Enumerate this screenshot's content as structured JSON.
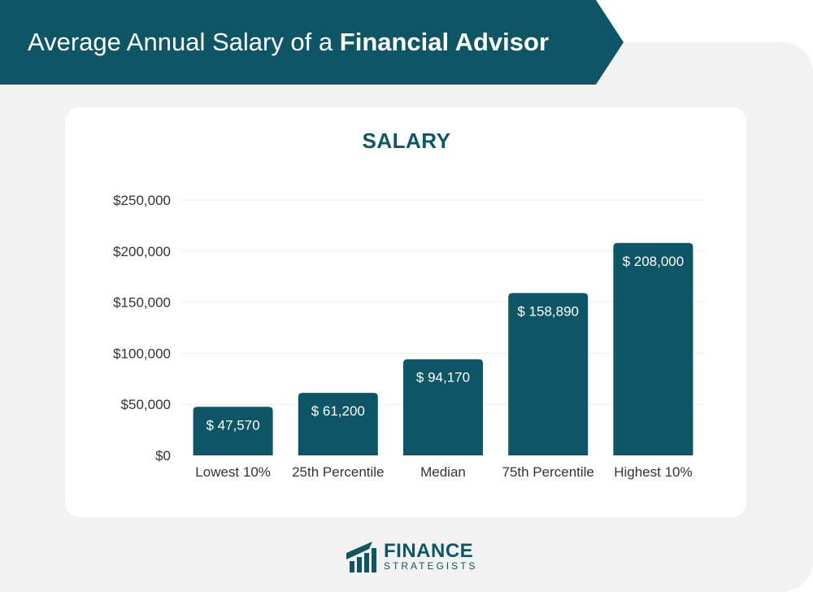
{
  "header": {
    "title_regular": "Average Annual Salary of a",
    "title_bold": "Financial Advisor"
  },
  "colors": {
    "banner": "#0e5566",
    "bar": "#0e5566",
    "background": "#f2f2f2",
    "card": "#ffffff",
    "axis_text": "#333333",
    "grid": "#eeeeee"
  },
  "chart_data": {
    "type": "bar",
    "title": "SALARY",
    "xlabel": "",
    "ylabel": "",
    "categories": [
      "Lowest 10%",
      "25th Percentile",
      "Median",
      "75th Percentile",
      "Highest 10%"
    ],
    "values": [
      47570,
      61200,
      94170,
      158890,
      208000
    ],
    "data_labels": [
      "$ 47,570",
      "$ 61,200",
      "$ 94,170",
      "$ 158,890",
      "$ 208,000"
    ],
    "ylim": [
      0,
      250000
    ],
    "y_ticks": [
      0,
      50000,
      100000,
      150000,
      200000,
      250000
    ],
    "y_tick_labels": [
      "$0",
      "$50,000",
      "$100,000",
      "$150,000",
      "$200,000",
      "$250,000"
    ],
    "grid": true,
    "legend": "none"
  },
  "logo": {
    "name": "FINANCE",
    "tagline": "STRATEGISTS",
    "icon": "finance-strategists-logo-icon"
  }
}
